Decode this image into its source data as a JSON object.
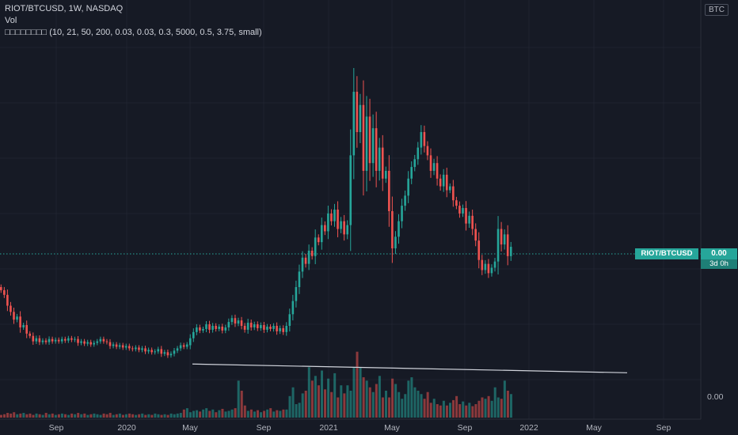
{
  "header": {
    "title": "RIOT/BTCUSD, 1W, NASDAQ",
    "indicator_vol": "Vol",
    "indicator_custom": "□□□□□□□□ (10, 21, 50, 200, 0.03, 0.03, 0.3, 5000, 0.5, 3.75, small)"
  },
  "currency_badge": "BTC",
  "price_tag": {
    "symbol": "RIOT/BTCUSD",
    "price": "0.00",
    "countdown": "3d 0h"
  },
  "volume_axis": {
    "value": "0.00"
  },
  "colors": {
    "up": "#26a69a",
    "down": "#ef5350",
    "background": "#161a25",
    "grid": "#1f2330",
    "trendline": "#d1d4dc",
    "price_line": "#26a69a"
  },
  "chart_data": {
    "type": "candlestick",
    "interval": "1W",
    "x_tick_labels": [
      "Sep",
      "2020",
      "May",
      "Sep",
      "2021",
      "May",
      "Sep",
      "2022",
      "May",
      "Sep"
    ],
    "price_scale_label": "0.00",
    "trendline": {
      "start": "2020-05",
      "end": "2022-07",
      "from": 13,
      "to": 115
    },
    "candles": [
      {
        "o": 150,
        "c": 146
      },
      {
        "o": 146,
        "c": 140
      },
      {
        "o": 140,
        "c": 126
      },
      {
        "o": 126,
        "c": 118
      },
      {
        "o": 118,
        "c": 108
      },
      {
        "o": 108,
        "c": 112
      },
      {
        "o": 112,
        "c": 98
      },
      {
        "o": 98,
        "c": 101
      },
      {
        "o": 101,
        "c": 90
      },
      {
        "o": 90,
        "c": 87
      },
      {
        "o": 87,
        "c": 80
      },
      {
        "o": 80,
        "c": 84
      },
      {
        "o": 84,
        "c": 79
      },
      {
        "o": 79,
        "c": 81
      },
      {
        "o": 81,
        "c": 79
      },
      {
        "o": 79,
        "c": 83
      },
      {
        "o": 83,
        "c": 80
      },
      {
        "o": 80,
        "c": 82
      },
      {
        "o": 82,
        "c": 80
      },
      {
        "o": 80,
        "c": 83
      },
      {
        "o": 83,
        "c": 81
      },
      {
        "o": 81,
        "c": 84
      },
      {
        "o": 84,
        "c": 82
      },
      {
        "o": 82,
        "c": 83
      },
      {
        "o": 83,
        "c": 78
      },
      {
        "o": 78,
        "c": 80
      },
      {
        "o": 80,
        "c": 77
      },
      {
        "o": 77,
        "c": 79
      },
      {
        "o": 79,
        "c": 76
      },
      {
        "o": 76,
        "c": 78
      },
      {
        "o": 78,
        "c": 80
      },
      {
        "o": 80,
        "c": 83
      },
      {
        "o": 83,
        "c": 80
      },
      {
        "o": 80,
        "c": 79
      },
      {
        "o": 79,
        "c": 74
      },
      {
        "o": 74,
        "c": 76
      },
      {
        "o": 76,
        "c": 73
      },
      {
        "o": 73,
        "c": 75
      },
      {
        "o": 75,
        "c": 72
      },
      {
        "o": 72,
        "c": 74
      },
      {
        "o": 74,
        "c": 71
      },
      {
        "o": 71,
        "c": 70
      },
      {
        "o": 70,
        "c": 72
      },
      {
        "o": 72,
        "c": 69
      },
      {
        "o": 69,
        "c": 71
      },
      {
        "o": 71,
        "c": 67
      },
      {
        "o": 67,
        "c": 69
      },
      {
        "o": 69,
        "c": 66
      },
      {
        "o": 66,
        "c": 67
      },
      {
        "o": 67,
        "c": 70
      },
      {
        "o": 70,
        "c": 64
      },
      {
        "o": 64,
        "c": 66
      },
      {
        "o": 66,
        "c": 62
      },
      {
        "o": 62,
        "c": 64
      },
      {
        "o": 64,
        "c": 68
      },
      {
        "o": 68,
        "c": 71
      },
      {
        "o": 71,
        "c": 75
      },
      {
        "o": 75,
        "c": 73
      },
      {
        "o": 73,
        "c": 76
      },
      {
        "o": 75,
        "c": 84
      },
      {
        "o": 84,
        "c": 92
      },
      {
        "o": 92,
        "c": 98
      },
      {
        "o": 98,
        "c": 94
      },
      {
        "o": 94,
        "c": 96
      },
      {
        "o": 96,
        "c": 102
      },
      {
        "o": 102,
        "c": 95
      },
      {
        "o": 95,
        "c": 100
      },
      {
        "o": 100,
        "c": 96
      },
      {
        "o": 96,
        "c": 99
      },
      {
        "o": 99,
        "c": 94
      },
      {
        "o": 94,
        "c": 98
      },
      {
        "o": 98,
        "c": 105
      },
      {
        "o": 105,
        "c": 110
      },
      {
        "o": 110,
        "c": 103
      },
      {
        "o": 103,
        "c": 107
      },
      {
        "o": 107,
        "c": 100
      },
      {
        "o": 100,
        "c": 95
      },
      {
        "o": 95,
        "c": 104
      },
      {
        "o": 104,
        "c": 98
      },
      {
        "o": 98,
        "c": 102
      },
      {
        "o": 102,
        "c": 97
      },
      {
        "o": 97,
        "c": 101
      },
      {
        "o": 101,
        "c": 95
      },
      {
        "o": 95,
        "c": 99
      },
      {
        "o": 99,
        "c": 96
      },
      {
        "o": 96,
        "c": 100
      },
      {
        "o": 100,
        "c": 93
      },
      {
        "o": 93,
        "c": 97
      },
      {
        "o": 97,
        "c": 92
      },
      {
        "o": 92,
        "c": 100
      },
      {
        "o": 100,
        "c": 115
      },
      {
        "o": 115,
        "c": 132
      },
      {
        "o": 132,
        "c": 150
      },
      {
        "o": 150,
        "c": 170
      },
      {
        "o": 170,
        "c": 188
      },
      {
        "o": 188,
        "c": 180
      },
      {
        "o": 180,
        "c": 197
      },
      {
        "o": 197,
        "c": 190
      },
      {
        "o": 190,
        "c": 214
      },
      {
        "o": 214,
        "c": 208
      },
      {
        "o": 208,
        "c": 230
      },
      {
        "o": 230,
        "c": 222
      },
      {
        "o": 222,
        "c": 245
      },
      {
        "o": 245,
        "c": 235
      },
      {
        "o": 235,
        "c": 250
      },
      {
        "o": 250,
        "c": 225
      },
      {
        "o": 225,
        "c": 235
      },
      {
        "o": 235,
        "c": 218
      },
      {
        "o": 218,
        "c": 230
      },
      {
        "o": 230,
        "c": 320
      },
      {
        "o": 320,
        "c": 402
      },
      {
        "o": 402,
        "c": 350
      },
      {
        "o": 350,
        "c": 385
      },
      {
        "o": 385,
        "c": 300
      },
      {
        "o": 300,
        "c": 370
      },
      {
        "o": 370,
        "c": 310
      },
      {
        "o": 310,
        "c": 355
      },
      {
        "o": 355,
        "c": 300
      },
      {
        "o": 300,
        "c": 330
      },
      {
        "o": 330,
        "c": 290
      },
      {
        "o": 290,
        "c": 300
      },
      {
        "o": 300,
        "c": 248
      },
      {
        "o": 248,
        "c": 200
      },
      {
        "o": 200,
        "c": 215
      },
      {
        "o": 215,
        "c": 235
      },
      {
        "o": 235,
        "c": 255
      },
      {
        "o": 255,
        "c": 268
      },
      {
        "o": 268,
        "c": 290
      },
      {
        "o": 290,
        "c": 305
      },
      {
        "o": 305,
        "c": 315
      },
      {
        "o": 315,
        "c": 330
      },
      {
        "o": 330,
        "c": 350
      },
      {
        "o": 350,
        "c": 332
      },
      {
        "o": 332,
        "c": 320
      },
      {
        "o": 320,
        "c": 300
      },
      {
        "o": 300,
        "c": 310
      },
      {
        "o": 310,
        "c": 290
      },
      {
        "o": 290,
        "c": 280
      },
      {
        "o": 280,
        "c": 295
      },
      {
        "o": 295,
        "c": 275
      },
      {
        "o": 275,
        "c": 280
      },
      {
        "o": 280,
        "c": 262
      },
      {
        "o": 262,
        "c": 255
      },
      {
        "o": 255,
        "c": 245
      },
      {
        "o": 245,
        "c": 252
      },
      {
        "o": 252,
        "c": 232
      },
      {
        "o": 232,
        "c": 242
      },
      {
        "o": 242,
        "c": 225
      },
      {
        "o": 225,
        "c": 210
      },
      {
        "o": 210,
        "c": 185
      },
      {
        "o": 185,
        "c": 172
      },
      {
        "o": 172,
        "c": 180
      },
      {
        "o": 180,
        "c": 168
      },
      {
        "o": 168,
        "c": 175
      },
      {
        "o": 175,
        "c": 183
      },
      {
        "o": 183,
        "c": 225
      },
      {
        "o": 225,
        "c": 205
      },
      {
        "o": 205,
        "c": 218
      },
      {
        "o": 218,
        "c": 190
      },
      {
        "o": 190,
        "c": 202
      }
    ],
    "volume": [
      4,
      5,
      7,
      6,
      8,
      5,
      6,
      7,
      5,
      6,
      4,
      6,
      5,
      4,
      7,
      5,
      6,
      4,
      5,
      6,
      5,
      4,
      6,
      5,
      7,
      5,
      6,
      4,
      5,
      6,
      5,
      4,
      6,
      5,
      7,
      4,
      5,
      6,
      4,
      5,
      6,
      5,
      4,
      5,
      6,
      4,
      5,
      4,
      6,
      5,
      4,
      5,
      4,
      6,
      5,
      6,
      7,
      12,
      14,
      8,
      10,
      11,
      9,
      12,
      14,
      10,
      12,
      8,
      11,
      13,
      9,
      10,
      12,
      14,
      55,
      40,
      18,
      10,
      12,
      9,
      11,
      8,
      10,
      12,
      14,
      9,
      11,
      10,
      12,
      12,
      32,
      45,
      20,
      22,
      36,
      40,
      75,
      55,
      62,
      48,
      70,
      42,
      58,
      38,
      66,
      30,
      48,
      36,
      48,
      40,
      75,
      98,
      75,
      60,
      55,
      45,
      38,
      50,
      62,
      30,
      40,
      30,
      58,
      50,
      38,
      28,
      35,
      55,
      60,
      45,
      40,
      35,
      28,
      38,
      22,
      28,
      20,
      18,
      25,
      18,
      22,
      26,
      32,
      20,
      24,
      18,
      22,
      17,
      20,
      25,
      30,
      28,
      32,
      25,
      45,
      30,
      28,
      55,
      40,
      35
    ]
  }
}
